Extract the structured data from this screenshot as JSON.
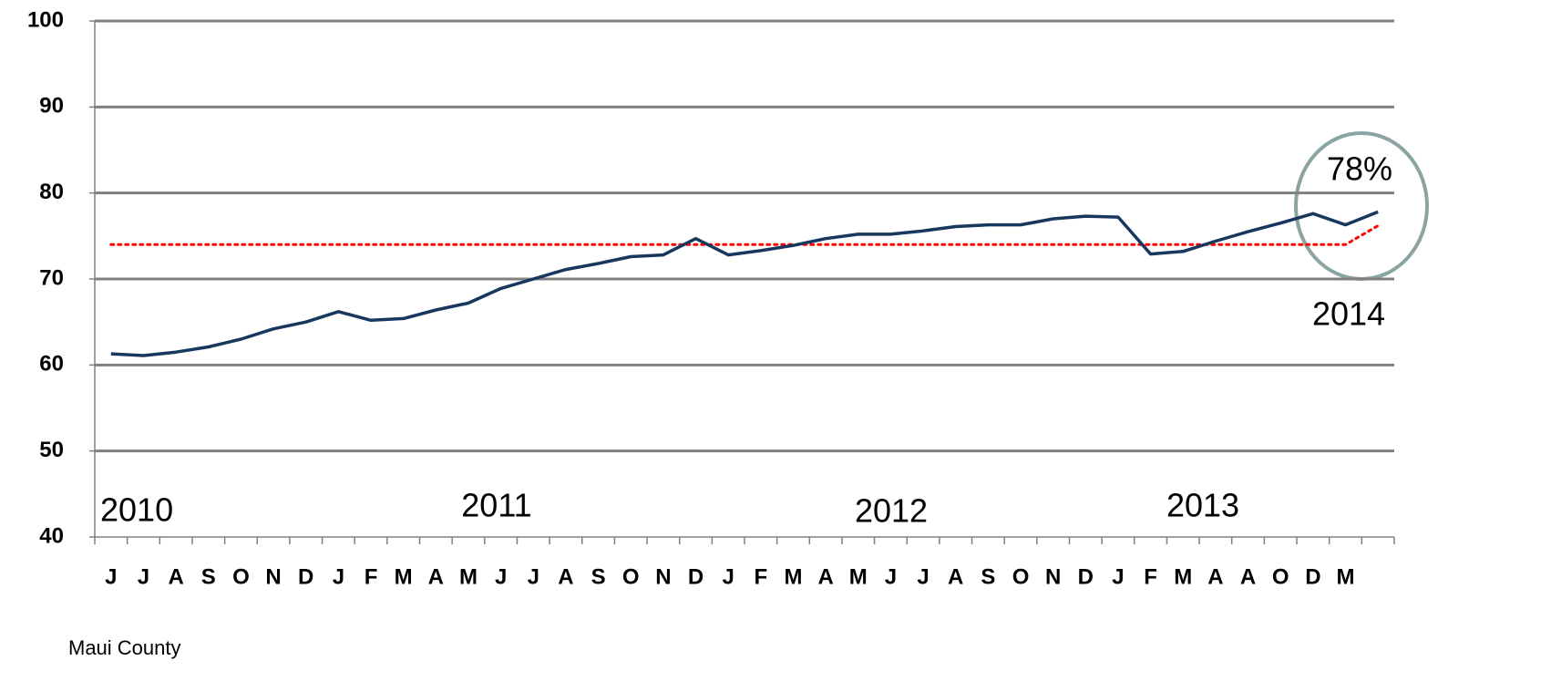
{
  "chart_data": {
    "type": "line",
    "categories": [
      "J",
      "J",
      "A",
      "S",
      "O",
      "N",
      "D",
      "J",
      "F",
      "M",
      "A",
      "M",
      "J",
      "J",
      "A",
      "S",
      "O",
      "N",
      "D",
      "J",
      "F",
      "M",
      "A",
      "M",
      "J",
      "J",
      "A",
      "S",
      "O",
      "N",
      "D",
      "J",
      "F",
      "M",
      "A",
      "A",
      "O",
      "D",
      "M",
      null
    ],
    "series": [
      {
        "color": "#17375e",
        "style": "solid",
        "values": [
          61.3,
          61.1,
          61.5,
          62.1,
          63.0,
          64.2,
          65.0,
          66.2,
          65.2,
          65.4,
          66.4,
          67.2,
          68.9,
          70.0,
          71.1,
          71.8,
          72.6,
          72.8,
          74.7,
          72.8,
          73.3,
          73.9,
          74.7,
          75.2,
          75.2,
          75.6,
          76.1,
          76.3,
          76.3,
          77.0,
          77.3,
          77.2,
          72.9,
          73.2,
          74.4,
          75.5,
          76.5,
          77.6,
          76.3,
          77.8
        ]
      },
      {
        "color": "#ff0000",
        "style": "dotted",
        "values": [
          74,
          74,
          74,
          74,
          74,
          74,
          74,
          74,
          74,
          74,
          74,
          74,
          74,
          74,
          74,
          74,
          74,
          74,
          74,
          74,
          74,
          74,
          74,
          74,
          74,
          74,
          74,
          74,
          74,
          74,
          74,
          74,
          74,
          74,
          74,
          74,
          74,
          74,
          74,
          76.2
        ]
      }
    ],
    "ylim": [
      40,
      100
    ],
    "yticks": [
      40,
      50,
      60,
      70,
      80,
      90,
      100
    ],
    "grid": true,
    "annotations": [
      "2010",
      "2011",
      "2012",
      "2013",
      "78%",
      "2014"
    ],
    "source": "Maui County"
  }
}
